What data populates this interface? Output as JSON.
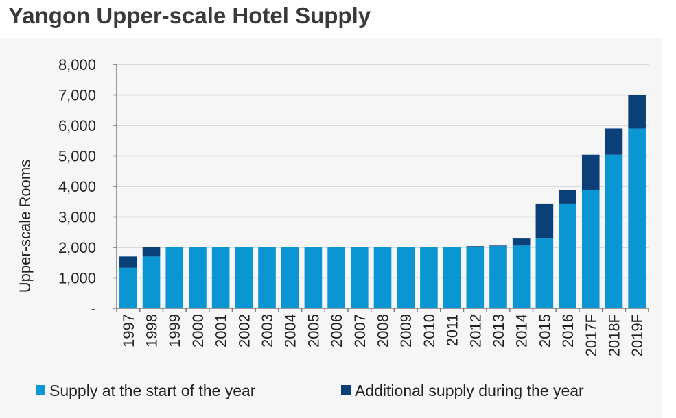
{
  "title": "Yangon Upper-scale Hotel Supply",
  "colors": {
    "start": "#0a96d2",
    "additional": "#0b3f78",
    "grid": "#cfcfcf",
    "axis": "#7a7a7a"
  },
  "chart_data": {
    "type": "bar",
    "stacked": true,
    "title": "Yangon Upper-scale Hotel Supply",
    "ylabel": "Upper-scale Rooms",
    "xlabel": "",
    "ylim": [
      0,
      8000
    ],
    "yticks": [
      0,
      1000,
      2000,
      3000,
      4000,
      5000,
      6000,
      7000,
      8000
    ],
    "ytick_labels": [
      "-",
      "1,000",
      "2,000",
      "3,000",
      "4,000",
      "5,000",
      "6,000",
      "7,000",
      "8,000"
    ],
    "grid": true,
    "legend_position": "bottom",
    "categories": [
      "1997",
      "1998",
      "1999",
      "2000",
      "2001",
      "2002",
      "2003",
      "2004",
      "2005",
      "2006",
      "2007",
      "2008",
      "2009",
      "2010",
      "2011",
      "2012",
      "2013",
      "2014",
      "2015",
      "2016",
      "2017F",
      "2018F",
      "2019F"
    ],
    "series": [
      {
        "name": "Supply at the start of the year",
        "color": "#0a96d2",
        "values": [
          1330,
          1700,
          2000,
          2000,
          2000,
          2000,
          2000,
          2000,
          2000,
          2000,
          2000,
          2000,
          2000,
          2000,
          2000,
          2000,
          2040,
          2060,
          2290,
          3440,
          3880,
          5040,
          5900
        ]
      },
      {
        "name": "Additional supply during the year",
        "color": "#0b3f78",
        "values": [
          370,
          300,
          0,
          0,
          0,
          0,
          0,
          0,
          0,
          0,
          0,
          0,
          0,
          0,
          0,
          40,
          20,
          230,
          1150,
          440,
          1160,
          860,
          1090
        ]
      }
    ]
  }
}
